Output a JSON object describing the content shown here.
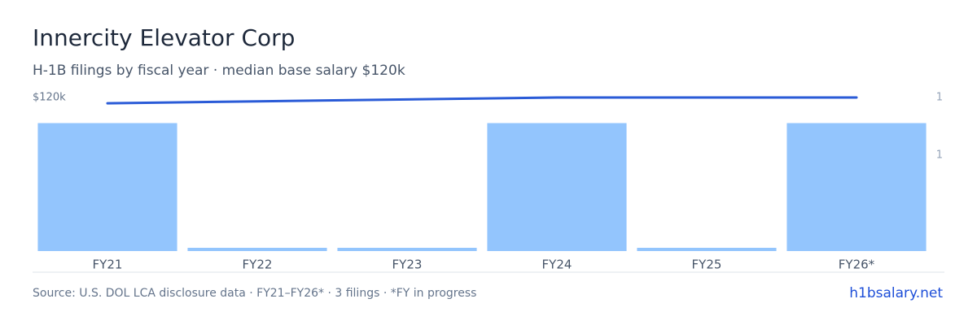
{
  "chart_data": {
    "type": "bar",
    "title": "Innercity Elevator Corp",
    "subtitle": "H-1B filings by fiscal year · median base salary $120k",
    "categories": [
      "FY21",
      "FY22",
      "FY23",
      "FY24",
      "FY25",
      "FY26*"
    ],
    "series": [
      {
        "name": "H-1B filings",
        "color": "#93c5fd",
        "values": [
          1,
          0,
          0,
          1,
          0,
          1
        ]
      },
      {
        "name": "Median base salary",
        "color": "#2a5bd7",
        "type": "line",
        "axis": "y2",
        "values": [
          115500,
          117000,
          118500,
          120000,
          120000,
          120000
        ]
      }
    ],
    "ylim": [
      0,
      1.2
    ],
    "yticks": [
      {
        "value": 0.75,
        "label": "1"
      },
      {
        "value": 1.2,
        "label": "1"
      }
    ],
    "y2lim": [
      0,
      120000
    ],
    "y2ticks": [
      {
        "value": 120000,
        "label": "$120k"
      }
    ],
    "grid": false,
    "footer": "Source: U.S. DOL LCA disclosure data · FY21–FY26* · 3 filings · *FY in progress",
    "link": "h1bsalary.net"
  }
}
